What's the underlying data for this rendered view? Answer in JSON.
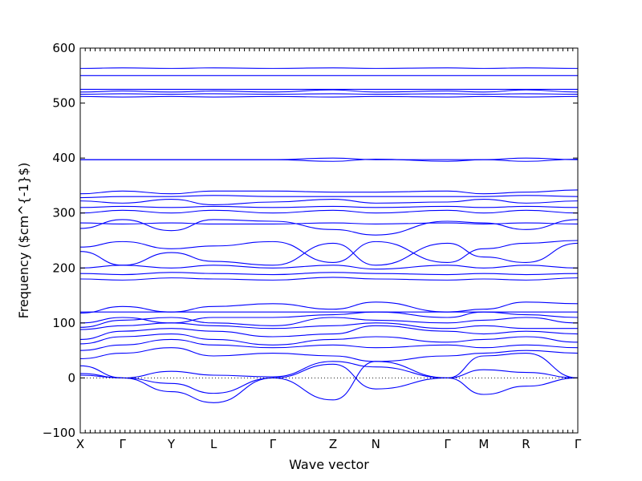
{
  "chart_data": {
    "type": "line",
    "title": "",
    "xlabel": "Wave vector",
    "ylabel": "Frequency ($cm^{-1}$)",
    "ylim": [
      -100,
      600
    ],
    "yticks": [
      -100,
      0,
      100,
      200,
      300,
      400,
      500,
      600
    ],
    "xtick_labels": [
      "X",
      "Γ",
      "Y",
      "L",
      "Γ",
      "Z",
      "N",
      "Γ",
      "M",
      "R",
      "Γ"
    ],
    "x_units": "path segments",
    "path": [
      "X",
      "Γ",
      "Y",
      "L",
      "Γ",
      "Z",
      "N",
      "Γ",
      "M",
      "R",
      "Γ"
    ],
    "series_x": [
      0,
      1,
      2,
      3,
      4,
      5,
      6,
      7,
      8,
      9,
      10
    ],
    "series": [
      {
        "values": [
          8,
          0,
          12,
          5,
          2,
          30,
          20,
          0,
          15,
          10,
          0
        ]
      },
      {
        "values": [
          5,
          0,
          -10,
          -28,
          0,
          -40,
          30,
          0,
          -30,
          -15,
          0
        ]
      },
      {
        "values": [
          22,
          0,
          -25,
          -45,
          0,
          25,
          -20,
          0,
          40,
          45,
          0
        ]
      },
      {
        "values": [
          35,
          45,
          55,
          40,
          45,
          40,
          30,
          40,
          45,
          50,
          45
        ]
      },
      {
        "values": [
          50,
          60,
          70,
          60,
          55,
          60,
          55,
          60,
          55,
          60,
          55
        ]
      },
      {
        "values": [
          62,
          75,
          80,
          70,
          60,
          70,
          75,
          65,
          70,
          75,
          65
        ]
      },
      {
        "values": [
          70,
          85,
          90,
          85,
          75,
          80,
          95,
          85,
          80,
          85,
          80
        ]
      },
      {
        "values": [
          88,
          95,
          100,
          95,
          90,
          95,
          100,
          90,
          95,
          90,
          90
        ]
      },
      {
        "values": [
          92,
          105,
          110,
          100,
          95,
          110,
          105,
          100,
          105,
          110,
          100
        ]
      },
      {
        "values": [
          100,
          110,
          100,
          110,
          110,
          115,
          120,
          110,
          120,
          115,
          110
        ]
      },
      {
        "values": [
          118,
          130,
          120,
          130,
          135,
          125,
          138,
          120,
          125,
          138,
          135
        ]
      },
      {
        "values": [
          120,
          120,
          120,
          120,
          120,
          120,
          120,
          120,
          120,
          120,
          120
        ]
      },
      {
        "values": [
          180,
          178,
          182,
          180,
          178,
          183,
          180,
          178,
          180,
          178,
          182
        ]
      },
      {
        "values": [
          190,
          188,
          192,
          190,
          188,
          192,
          190,
          188,
          190,
          188,
          190
        ]
      },
      {
        "values": [
          200,
          205,
          200,
          205,
          200,
          205,
          198,
          205,
          200,
          205,
          200
        ]
      },
      {
        "values": [
          230,
          205,
          228,
          212,
          205,
          245,
          205,
          245,
          220,
          210,
          245
        ]
      },
      {
        "values": [
          238,
          248,
          235,
          240,
          248,
          210,
          248,
          210,
          235,
          245,
          250
        ]
      },
      {
        "values": [
          272,
          288,
          268,
          288,
          285,
          270,
          260,
          285,
          282,
          270,
          288
        ]
      },
      {
        "values": [
          282,
          280,
          282,
          280,
          280,
          282,
          280,
          282,
          280,
          282,
          280
        ]
      },
      {
        "values": [
          300,
          305,
          300,
          305,
          300,
          305,
          300,
          305,
          300,
          305,
          300
        ]
      },
      {
        "values": [
          310,
          312,
          310,
          312,
          310,
          312,
          310,
          312,
          310,
          312,
          310
        ]
      },
      {
        "values": [
          322,
          318,
          325,
          315,
          320,
          325,
          318,
          320,
          325,
          318,
          322
        ]
      },
      {
        "values": [
          328,
          330,
          330,
          332,
          330,
          330,
          330,
          330,
          330,
          332,
          330
        ]
      },
      {
        "values": [
          335,
          340,
          335,
          340,
          340,
          338,
          338,
          340,
          335,
          338,
          342
        ]
      },
      {
        "values": [
          397,
          397,
          397,
          397,
          397,
          400,
          397,
          397,
          397,
          400,
          397
        ]
      },
      {
        "values": [
          397,
          397,
          397,
          397,
          397,
          394,
          398,
          394,
          397,
          394,
          398
        ]
      },
      {
        "values": [
          512,
          511,
          512,
          511,
          512,
          511,
          512,
          511,
          512,
          511,
          512
        ]
      },
      {
        "values": [
          516,
          517,
          516,
          517,
          516,
          517,
          516,
          517,
          516,
          517,
          516
        ]
      },
      {
        "values": [
          520,
          522,
          520,
          522,
          520,
          524,
          520,
          522,
          520,
          524,
          520
        ]
      },
      {
        "values": [
          525,
          525,
          525,
          525,
          525,
          525,
          525,
          525,
          525,
          525,
          525
        ]
      },
      {
        "values": [
          550,
          550,
          550,
          550,
          550,
          550,
          550,
          550,
          550,
          550,
          550
        ]
      },
      {
        "values": [
          563,
          564,
          563,
          564,
          563,
          564,
          563,
          564,
          563,
          564,
          563
        ]
      }
    ],
    "line_color": "#0000ff",
    "zero_line": true,
    "grid": false,
    "legend": "none"
  }
}
